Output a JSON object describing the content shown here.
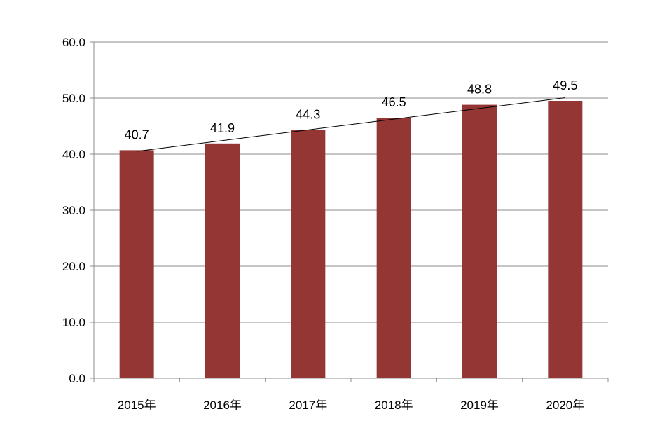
{
  "chart_data": {
    "type": "bar",
    "categories": [
      "2015年",
      "2016年",
      "2017年",
      "2018年",
      "2019年",
      "2020年"
    ],
    "values": [
      40.7,
      41.9,
      44.3,
      46.5,
      48.8,
      49.5
    ],
    "data_labels": [
      "40.7",
      "41.9",
      "44.3",
      "46.5",
      "48.8",
      "49.5"
    ],
    "y_ticks": [
      "0.0",
      "10.0",
      "20.0",
      "30.0",
      "40.0",
      "50.0",
      "60.0"
    ],
    "ylim": [
      0,
      60
    ],
    "grid": true,
    "trendline": "linear",
    "legend": "none",
    "title": "",
    "xlabel": "",
    "ylabel": ""
  },
  "colors": {
    "bar": "#943634",
    "gridline": "#8c8c8c",
    "axis": "#8c8c8c",
    "trendline": "#000000"
  }
}
